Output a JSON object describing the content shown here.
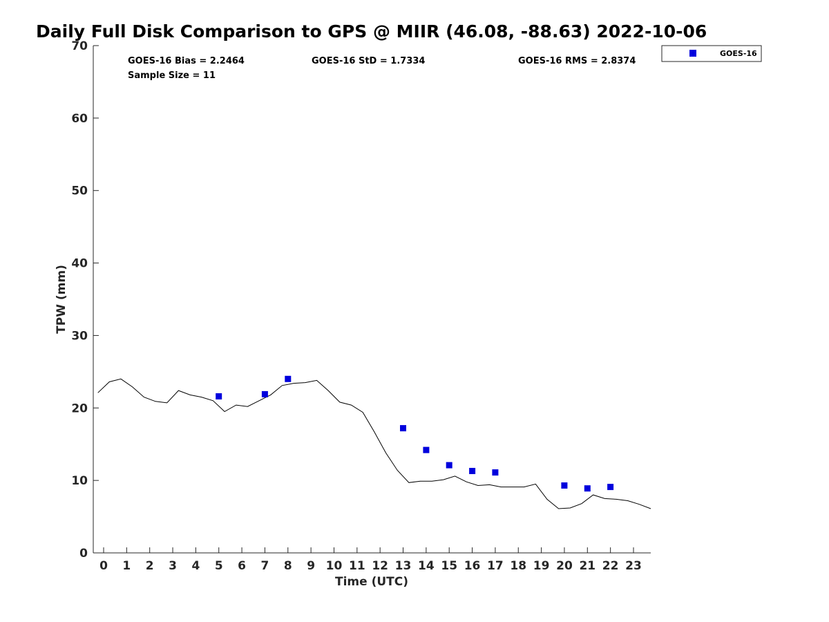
{
  "chart_data": {
    "type": "line+scatter",
    "title": "Daily Full Disk Comparison to GPS @ MIIR (46.08, -88.63) 2022-10-06",
    "xlabel": "Time (UTC)",
    "ylabel": "TPW (mm)",
    "xlim": [
      -0.45,
      23.75
    ],
    "ylim": [
      0,
      70
    ],
    "xticks": [
      0,
      1,
      2,
      3,
      4,
      5,
      6,
      7,
      8,
      9,
      10,
      11,
      12,
      13,
      14,
      15,
      16,
      17,
      18,
      19,
      20,
      21,
      22,
      23
    ],
    "yticks": [
      0,
      10,
      20,
      30,
      40,
      50,
      60,
      70
    ],
    "grid": false,
    "legend_position": "top-right, outside plot",
    "stats": {
      "bias": "GOES-16 Bias = 2.2464",
      "std": "GOES-16 StD = 1.7334",
      "rms": "GOES-16 RMS = 2.8374",
      "sample_size": "Sample Size = 11"
    },
    "series": [
      {
        "name": "GPS",
        "kind": "line",
        "color": "#000000",
        "x": [
          -0.25,
          0.25,
          0.75,
          1.25,
          1.75,
          2.25,
          2.75,
          3.25,
          3.75,
          4.25,
          4.75,
          5.25,
          5.75,
          6.25,
          6.75,
          7.25,
          7.75,
          8.25,
          8.75,
          9.25,
          9.75,
          10.25,
          10.75,
          11.25,
          11.75,
          12.25,
          12.75,
          13.25,
          13.75,
          14.25,
          14.75,
          15.25,
          15.75,
          16.25,
          16.75,
          17.25,
          17.75,
          18.25,
          18.75,
          19.25,
          19.75,
          20.25,
          20.75,
          21.25,
          21.75,
          22.25,
          22.75,
          23.25,
          23.75
        ],
        "y": [
          22.1,
          23.6,
          24.0,
          22.9,
          21.5,
          20.9,
          20.7,
          22.4,
          21.8,
          21.5,
          21.0,
          19.5,
          20.4,
          20.2,
          21.0,
          21.8,
          23.1,
          23.4,
          23.5,
          23.8,
          22.4,
          20.8,
          20.4,
          19.4,
          16.7,
          13.8,
          11.4,
          9.7,
          9.9,
          9.9,
          10.1,
          10.6,
          9.8,
          9.3,
          9.4,
          9.1,
          9.1,
          9.1,
          9.5,
          7.4,
          6.1,
          6.2,
          6.8,
          8.0,
          7.5,
          7.4,
          7.2,
          6.7,
          6.1
        ]
      },
      {
        "name": "GOES-16",
        "kind": "scatter",
        "color": "#0000dd",
        "x": [
          5,
          7,
          8,
          13,
          14,
          15,
          16,
          17,
          20,
          21,
          22
        ],
        "y": [
          21.6,
          21.9,
          24.0,
          17.2,
          14.2,
          12.1,
          11.3,
          11.1,
          9.3,
          8.9,
          9.1
        ]
      }
    ]
  }
}
